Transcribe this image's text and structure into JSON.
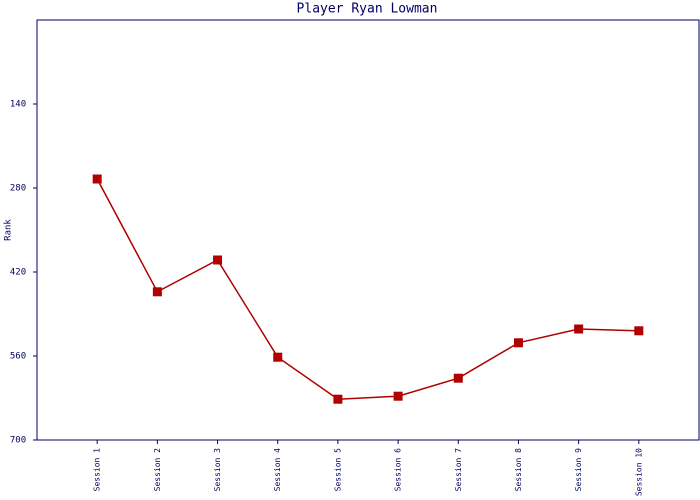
{
  "chart_data": {
    "type": "line",
    "title": "Player Ryan Lowman",
    "y_label": "Rank",
    "categories": [
      "Session 1",
      "Session 2",
      "Session 3",
      "Session 4",
      "Session 5",
      "Session 6",
      "Session 7",
      "Session 8",
      "Session 9",
      "Session 10"
    ],
    "series": [
      {
        "name": "Rank",
        "color": "#b00000",
        "values": [
          265,
          453,
          400,
          562,
          632,
          627,
          597,
          538,
          515,
          518
        ]
      }
    ],
    "ylim": [
      0,
      700
    ],
    "yticks": [
      140,
      280,
      420,
      560,
      700
    ],
    "y_inverted": true,
    "grid": false
  }
}
